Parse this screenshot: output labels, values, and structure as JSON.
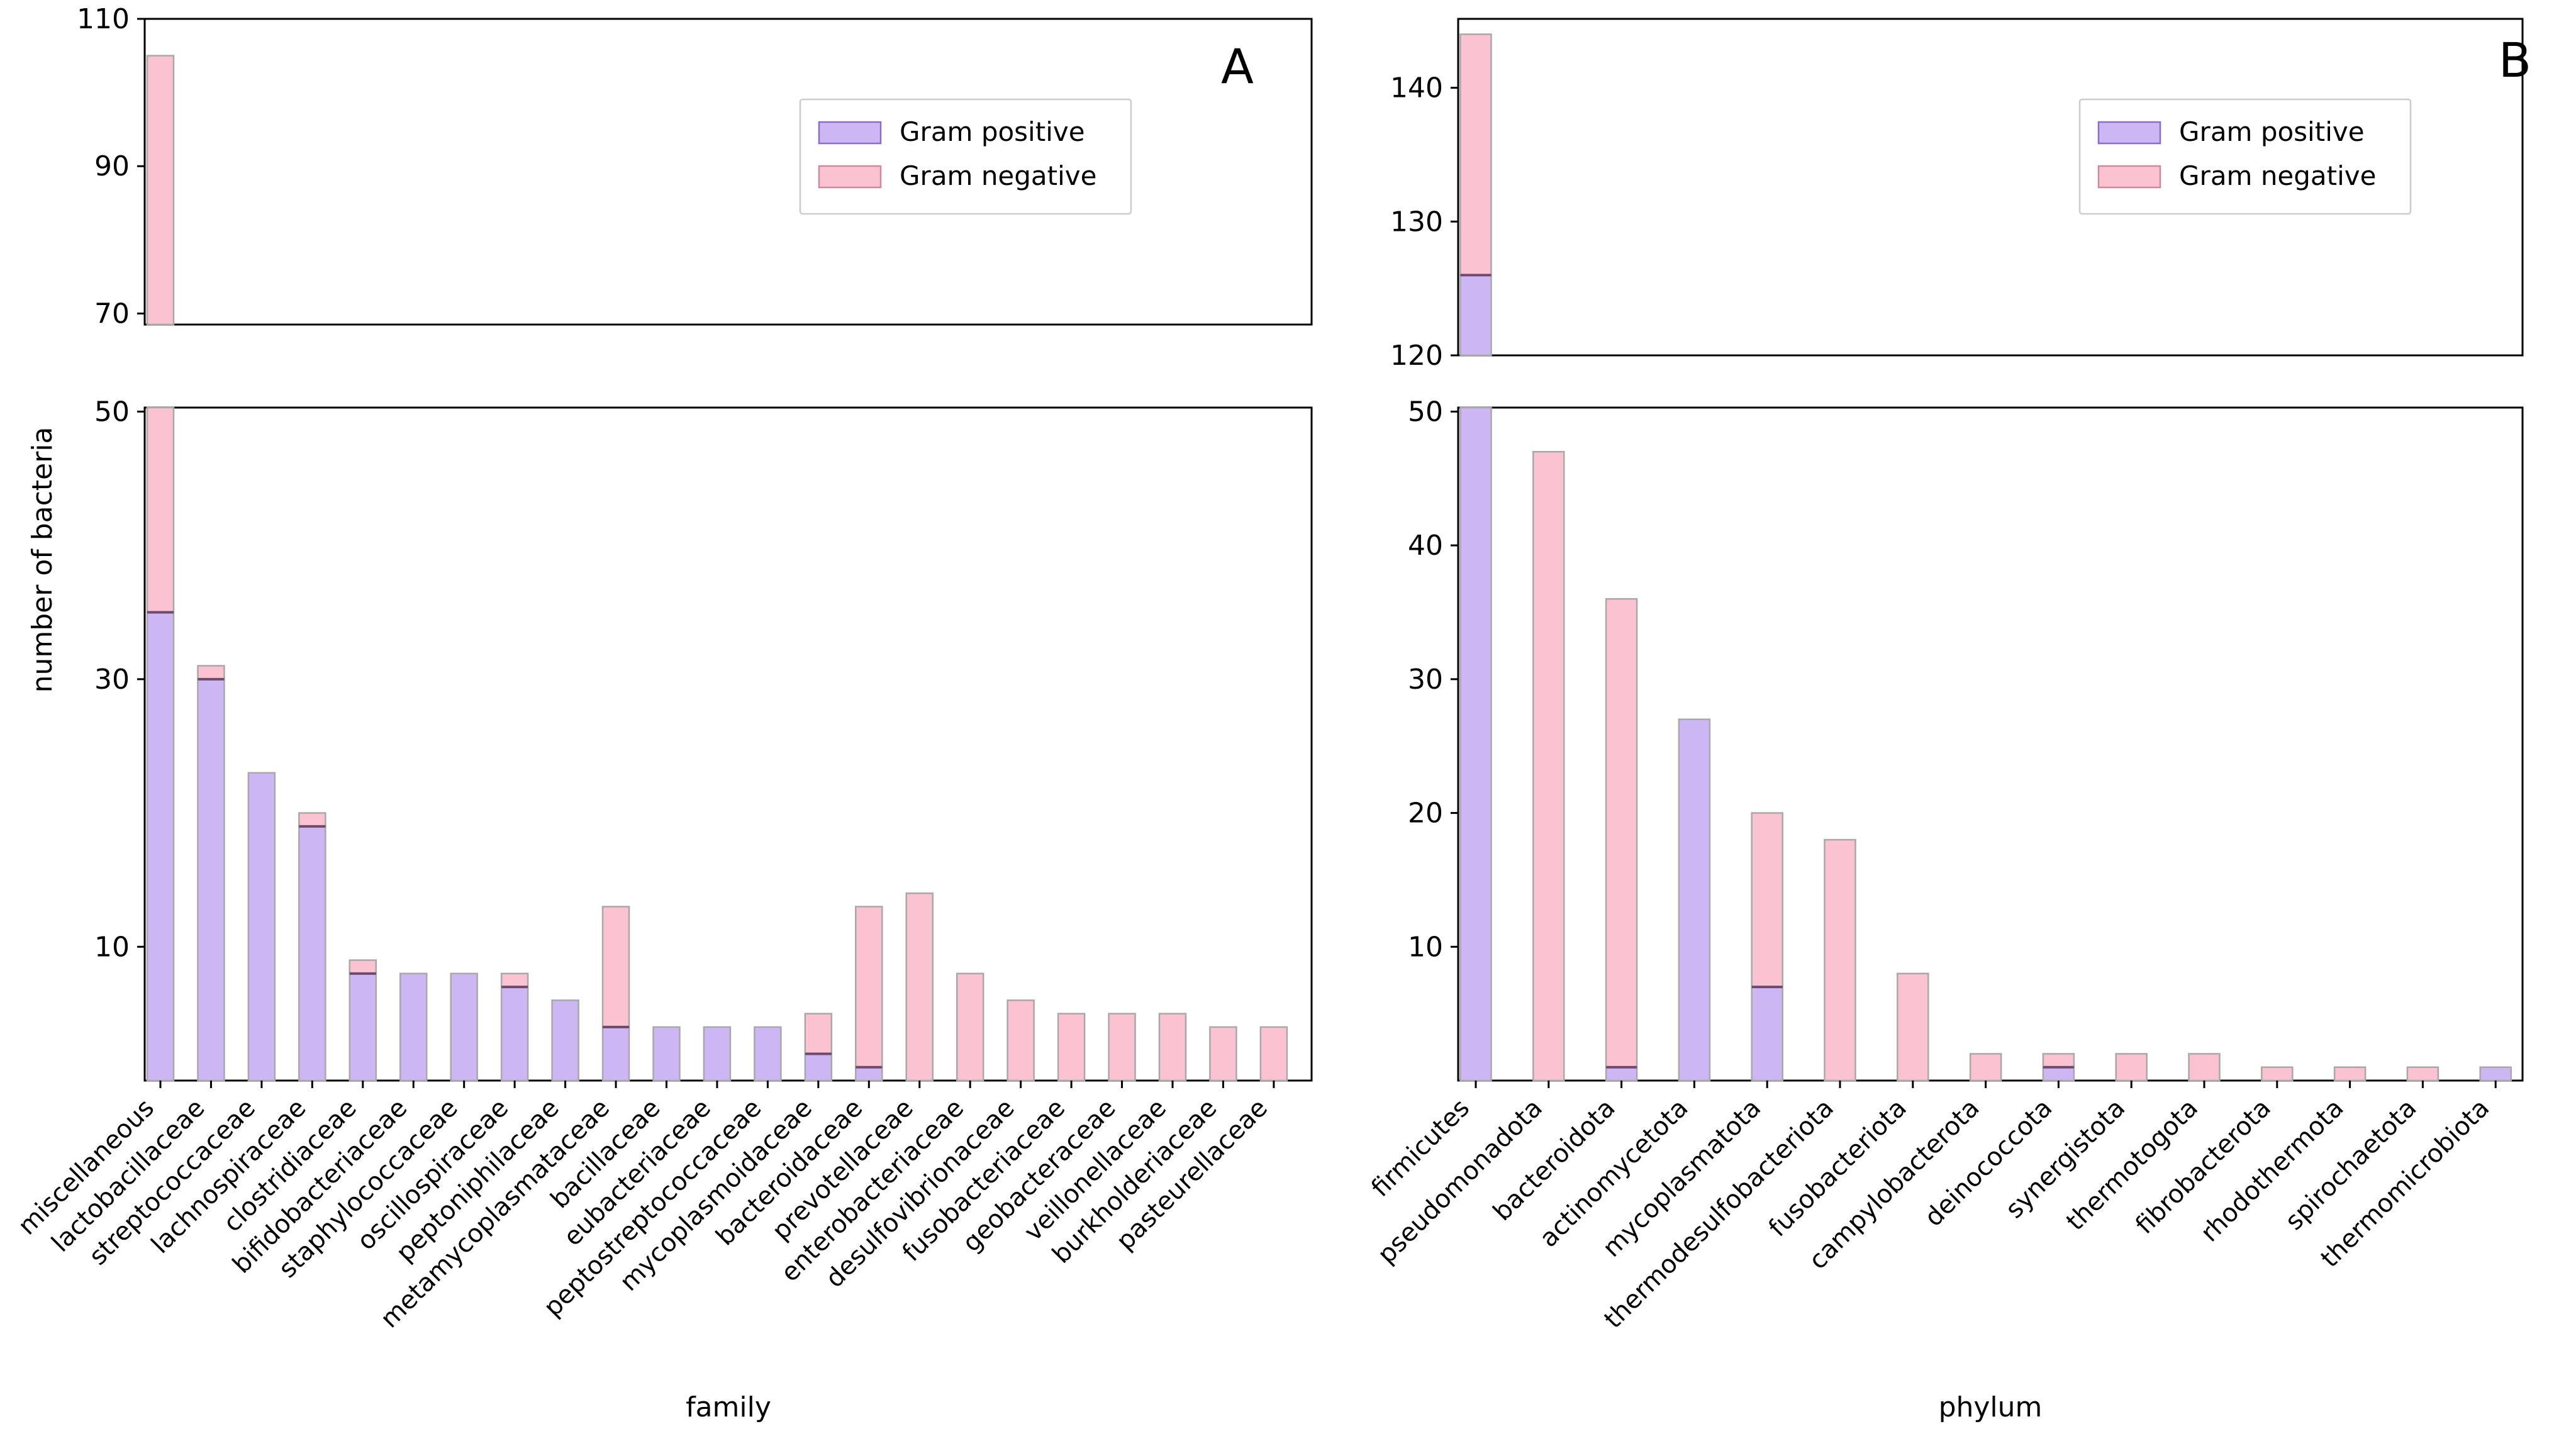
{
  "figure": {
    "background": "#ffffff",
    "panel_letters": {
      "left": "A",
      "right": "B"
    }
  },
  "palette": {
    "gram_positive_fill": "#cdb6f4",
    "gram_positive_edge": "#9a86c9",
    "gram_negative_fill": "#fbc2d1",
    "gram_negative_edge": "#c28d9e",
    "bar_outline": "#a8a8a8",
    "segment_boundary": "#6e4a68",
    "spine": "#000000",
    "legend_border": "#cccccc",
    "legend_purple_edge": "#8d6cc8",
    "legend_pink_edge": "#c98b99"
  },
  "legend": {
    "items": [
      {
        "label": "Gram positive",
        "color": "#cdb6f4"
      },
      {
        "label": "Gram negative",
        "color": "#fbc2d1"
      }
    ]
  },
  "chart_data": [
    {
      "type": "bar",
      "stacked": true,
      "panel_letter": "A",
      "xlabel": "family",
      "ylabel": "number of bacteria",
      "legend_position": "upper right",
      "broken_axis": {
        "top": {
          "range": [
            68.5,
            110
          ],
          "ticks": [
            70,
            90,
            110
          ]
        },
        "bottom": {
          "range": [
            0,
            50.3
          ],
          "ticks": [
            10,
            30,
            50
          ]
        }
      },
      "categories": [
        "miscellaneous",
        "lactobacillaceae",
        "streptococcaceae",
        "lachnospiraceae",
        "clostridiaceae",
        "bifidobacteriaceae",
        "staphylococcaceae",
        "oscillospiraceae",
        "peptoniphilaceae",
        "metamycoplasmataceae",
        "bacillaceae",
        "eubacteriaceae",
        "peptostreptococcaceae",
        "mycoplasmoidaceae",
        "bacteroidaceae",
        "prevotellaceae",
        "enterobacteriaceae",
        "desulfovibrionaceae",
        "fusobacteriaceae",
        "geobacteraceae",
        "veillonellaceae",
        "burkholderiaceae",
        "pasteurellaceae"
      ],
      "series": [
        {
          "name": "Gram positive",
          "values": [
            35,
            30,
            23,
            19,
            8,
            8,
            8,
            7,
            6,
            4,
            4,
            4,
            4,
            2,
            1,
            0,
            0,
            0,
            0,
            0,
            0,
            0,
            0
          ]
        },
        {
          "name": "Gram negative",
          "values": [
            70,
            1,
            0,
            1,
            1,
            0,
            0,
            1,
            0,
            9,
            0,
            0,
            0,
            3,
            12,
            14,
            8,
            6,
            5,
            5,
            5,
            4,
            4
          ]
        }
      ]
    },
    {
      "type": "bar",
      "stacked": true,
      "panel_letter": "B",
      "xlabel": "phylum",
      "ylabel": "",
      "legend_position": "upper right",
      "broken_axis": {
        "top": {
          "range": [
            120,
            145.15
          ],
          "ticks": [
            120,
            130,
            140
          ]
        },
        "bottom": {
          "range": [
            0,
            50.3
          ],
          "ticks": [
            10,
            20,
            30,
            40,
            50
          ]
        }
      },
      "categories": [
        "firmicutes",
        "pseudomonadota",
        "bacteroidota",
        "actinomycetota",
        "mycoplasmatota",
        "thermodesulfobacteriota",
        "fusobacteriota",
        "campylobacterota",
        "deinococcota",
        "synergistota",
        "thermotogota",
        "fibrobacterota",
        "rhodothermota",
        "spirochaetota",
        "thermomicrobiota"
      ],
      "series": [
        {
          "name": "Gram positive",
          "values": [
            126,
            0,
            1,
            27,
            7,
            0,
            0,
            0,
            1,
            0,
            0,
            0,
            0,
            0,
            1
          ]
        },
        {
          "name": "Gram negative",
          "values": [
            18,
            47,
            35,
            0,
            13,
            18,
            8,
            2,
            1,
            2,
            2,
            1,
            1,
            1,
            0
          ]
        }
      ]
    }
  ]
}
